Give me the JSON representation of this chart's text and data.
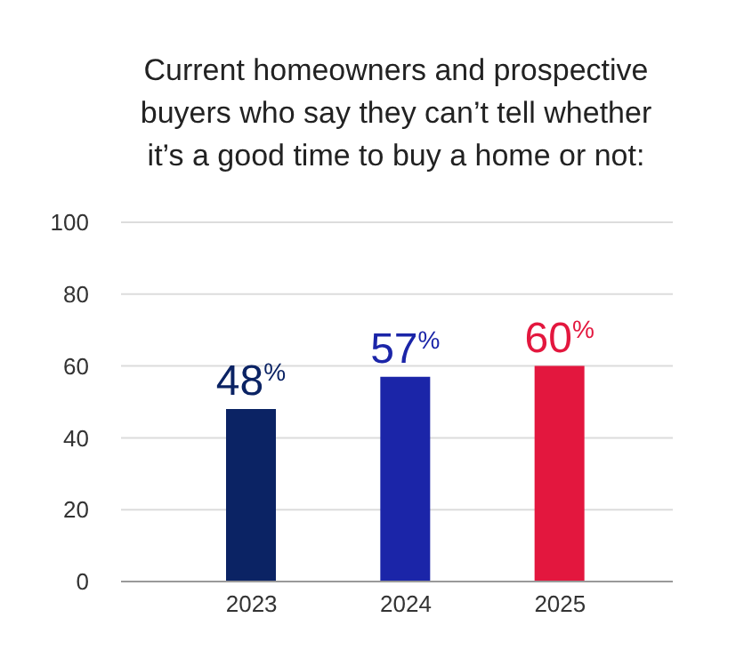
{
  "chart_data": {
    "type": "bar",
    "title": "Current homeowners and prospective buyers who say they can’t tell whether it’s a good time to buy a home or not:",
    "categories": [
      "2023",
      "2024",
      "2025"
    ],
    "values": [
      48,
      57,
      60
    ],
    "colors": [
      "#0b2364",
      "#1b25a8",
      "#e3173e"
    ],
    "value_labels": [
      "48$^{%}$",
      "57$^{%}$",
      "60$^{%}$"
    ],
    "ylim": [
      0,
      100
    ],
    "yticks": [
      0,
      20,
      40,
      60,
      80,
      100
    ],
    "grid": "y"
  }
}
